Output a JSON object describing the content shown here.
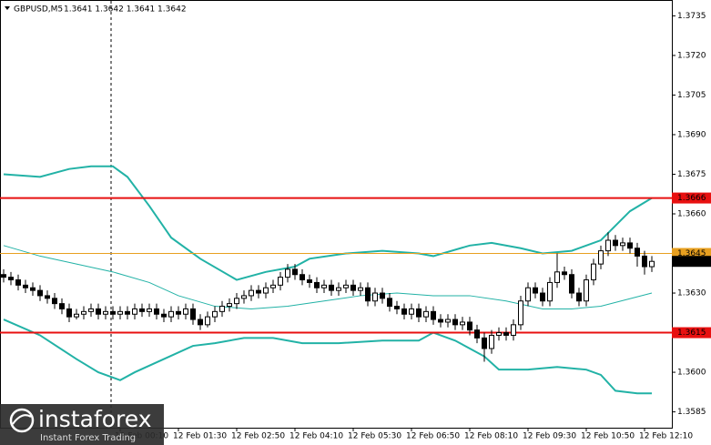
{
  "chart_data": {
    "type": "candlestick",
    "symbol": "GBPUSD,M5",
    "quote": "1.3641 1.3642 1.3641 1.3642",
    "ylim": [
      1.3579,
      1.3741
    ],
    "yticks": [
      1.3735,
      {
        "value": 1.372,
        "label": "1.3720"
      },
      1.3705,
      {
        "value": 1.369,
        "label": "1.3690"
      },
      1.3675,
      {
        "value": 1.366,
        "label": "1.3660"
      },
      {
        "value": 1.363,
        "label": "1.3630"
      },
      {
        "value": 1.36,
        "label": "1.3600"
      },
      1.3585
    ],
    "xticks": [
      {
        "value": 16,
        "label": "12 Feb 00:10"
      },
      {
        "value": 24,
        "label": "12 Feb 01:30"
      },
      {
        "value": 32,
        "label": "12 Feb 02:50"
      },
      {
        "value": 40,
        "label": "12 Feb 04:10"
      },
      {
        "value": 48,
        "label": "12 Feb 05:30"
      },
      {
        "value": 56,
        "label": "12 Feb 06:50"
      },
      {
        "value": 64,
        "label": "12 Feb 08:10"
      },
      {
        "value": 72,
        "label": "12 Feb 09:30"
      },
      {
        "value": 80,
        "label": "12 Feb 10:50"
      },
      {
        "value": 88,
        "label": "12 Feb 12:10"
      }
    ],
    "levels": [
      {
        "value": 1.3666,
        "color": "#e81010"
      },
      {
        "value": 1.3645,
        "color": "#e8a020"
      },
      {
        "value": 1.3615,
        "color": "#e81010"
      }
    ],
    "candles": [
      [
        1.3637,
        1.3639,
        1.3634,
        1.3636
      ],
      [
        1.3636,
        1.3638,
        1.3633,
        1.3635
      ],
      [
        1.3635,
        1.3637,
        1.3631,
        1.3633
      ],
      [
        1.3633,
        1.3635,
        1.363,
        1.3632
      ],
      [
        1.3632,
        1.3634,
        1.3629,
        1.3631
      ],
      [
        1.3631,
        1.3633,
        1.3627,
        1.3629
      ],
      [
        1.3629,
        1.3631,
        1.3626,
        1.3628
      ],
      [
        1.3628,
        1.363,
        1.3624,
        1.3626
      ],
      [
        1.3626,
        1.3628,
        1.3622,
        1.3624
      ],
      [
        1.3624,
        1.3626,
        1.3619,
        1.3621
      ],
      [
        1.3621,
        1.3624,
        1.362,
        1.3622
      ],
      [
        1.3622,
        1.3625,
        1.362,
        1.3623
      ],
      [
        1.3623,
        1.3626,
        1.3621,
        1.3624
      ],
      [
        1.3624,
        1.3626,
        1.362,
        1.3622
      ],
      [
        1.3622,
        1.3625,
        1.362,
        1.3623
      ],
      [
        1.3623,
        1.3625,
        1.362,
        1.3622
      ],
      [
        1.3622,
        1.3625,
        1.362,
        1.3623
      ],
      [
        1.3623,
        1.3625,
        1.362,
        1.3622
      ],
      [
        1.3622,
        1.3626,
        1.362,
        1.3624
      ],
      [
        1.3624,
        1.3626,
        1.3621,
        1.3623
      ],
      [
        1.3623,
        1.3626,
        1.3621,
        1.3624
      ],
      [
        1.3624,
        1.3626,
        1.362,
        1.3622
      ],
      [
        1.3622,
        1.3624,
        1.3619,
        1.3621
      ],
      [
        1.3621,
        1.3625,
        1.3619,
        1.3623
      ],
      [
        1.3623,
        1.3625,
        1.362,
        1.3622
      ],
      [
        1.3622,
        1.3626,
        1.362,
        1.3624
      ],
      [
        1.3624,
        1.3626,
        1.3618,
        1.362
      ],
      [
        1.362,
        1.3622,
        1.3616,
        1.3618
      ],
      [
        1.3618,
        1.3623,
        1.3617,
        1.3621
      ],
      [
        1.3621,
        1.3625,
        1.3619,
        1.3623
      ],
      [
        1.3623,
        1.3627,
        1.3621,
        1.3625
      ],
      [
        1.3625,
        1.3628,
        1.3623,
        1.3626
      ],
      [
        1.3626,
        1.363,
        1.3624,
        1.3628
      ],
      [
        1.3628,
        1.3631,
        1.3626,
        1.3629
      ],
      [
        1.3629,
        1.3633,
        1.3627,
        1.3631
      ],
      [
        1.3631,
        1.3633,
        1.3628,
        1.363
      ],
      [
        1.363,
        1.3634,
        1.3628,
        1.3632
      ],
      [
        1.3632,
        1.3635,
        1.363,
        1.3633
      ],
      [
        1.3633,
        1.3638,
        1.3631,
        1.3636
      ],
      [
        1.3636,
        1.3641,
        1.3634,
        1.3639
      ],
      [
        1.3639,
        1.3641,
        1.3635,
        1.3637
      ],
      [
        1.3637,
        1.3639,
        1.3633,
        1.3635
      ],
      [
        1.3635,
        1.3637,
        1.3632,
        1.3634
      ],
      [
        1.3634,
        1.3636,
        1.363,
        1.3632
      ],
      [
        1.3632,
        1.3635,
        1.363,
        1.3633
      ],
      [
        1.3633,
        1.3635,
        1.3629,
        1.3631
      ],
      [
        1.3631,
        1.3634,
        1.3629,
        1.3632
      ],
      [
        1.3632,
        1.3635,
        1.363,
        1.3633
      ],
      [
        1.3633,
        1.3635,
        1.3629,
        1.3631
      ],
      [
        1.3631,
        1.3634,
        1.3629,
        1.3632
      ],
      [
        1.3632,
        1.3634,
        1.3625,
        1.3627
      ],
      [
        1.3627,
        1.3632,
        1.3625,
        1.363
      ],
      [
        1.363,
        1.3632,
        1.3626,
        1.3628
      ],
      [
        1.3628,
        1.363,
        1.3623,
        1.3625
      ],
      [
        1.3625,
        1.3627,
        1.3622,
        1.3624
      ],
      [
        1.3624,
        1.3626,
        1.362,
        1.3622
      ],
      [
        1.3622,
        1.3626,
        1.362,
        1.3624
      ],
      [
        1.3624,
        1.3626,
        1.3619,
        1.3621
      ],
      [
        1.3621,
        1.3625,
        1.3619,
        1.3623
      ],
      [
        1.3623,
        1.3625,
        1.3618,
        1.362
      ],
      [
        1.362,
        1.3622,
        1.3617,
        1.3619
      ],
      [
        1.3619,
        1.3622,
        1.3617,
        1.362
      ],
      [
        1.362,
        1.3622,
        1.3616,
        1.3618
      ],
      [
        1.3618,
        1.3621,
        1.3616,
        1.3619
      ],
      [
        1.3619,
        1.3621,
        1.3614,
        1.3616
      ],
      [
        1.3616,
        1.3618,
        1.3611,
        1.3613
      ],
      [
        1.3613,
        1.3615,
        1.3604,
        1.3609
      ],
      [
        1.3609,
        1.3616,
        1.3607,
        1.3614
      ],
      [
        1.3614,
        1.3617,
        1.3612,
        1.3615
      ],
      [
        1.3615,
        1.3617,
        1.3612,
        1.3614
      ],
      [
        1.3614,
        1.362,
        1.3612,
        1.3618
      ],
      [
        1.3618,
        1.3629,
        1.3616,
        1.3627
      ],
      [
        1.3627,
        1.3634,
        1.3625,
        1.3632
      ],
      [
        1.3632,
        1.3634,
        1.3628,
        1.363
      ],
      [
        1.363,
        1.3632,
        1.3625,
        1.3627
      ],
      [
        1.3627,
        1.3636,
        1.3625,
        1.3634
      ],
      [
        1.3634,
        1.3645,
        1.3632,
        1.3638
      ],
      [
        1.3638,
        1.364,
        1.3635,
        1.3637
      ],
      [
        1.3637,
        1.3639,
        1.3628,
        1.363
      ],
      [
        1.363,
        1.3632,
        1.3625,
        1.3627
      ],
      [
        1.3627,
        1.3637,
        1.3625,
        1.3635
      ],
      [
        1.3635,
        1.3643,
        1.3633,
        1.3641
      ],
      [
        1.3641,
        1.3648,
        1.3639,
        1.3646
      ],
      [
        1.3646,
        1.3653,
        1.3644,
        1.365
      ],
      [
        1.365,
        1.3652,
        1.3646,
        1.3648
      ],
      [
        1.3648,
        1.3651,
        1.3646,
        1.3649
      ],
      [
        1.3649,
        1.3651,
        1.3645,
        1.3647
      ],
      [
        1.3647,
        1.3649,
        1.364,
        1.3644
      ],
      [
        1.3644,
        1.3646,
        1.3637,
        1.364
      ],
      [
        1.364,
        1.3644,
        1.3638,
        1.3642
      ]
    ],
    "bands": [
      {
        "color": "#22b2a6",
        "width": 2,
        "x": [
          0,
          5,
          9,
          12,
          15,
          17,
          20,
          23,
          27,
          32,
          36,
          40,
          42,
          47,
          52,
          57,
          59,
          64,
          67,
          71,
          74,
          78,
          82,
          86,
          89
        ],
        "values": [
          1.3675,
          1.3674,
          1.3677,
          1.3678,
          1.3678,
          1.3674,
          1.3663,
          1.3651,
          1.3643,
          1.3635,
          1.3638,
          1.364,
          1.3643,
          1.3645,
          1.3646,
          1.3645,
          1.3644,
          1.3648,
          1.3649,
          1.3647,
          1.3645,
          1.3646,
          1.365,
          1.3661,
          1.3666
        ]
      },
      {
        "color": "#22b2a6",
        "width": 1,
        "x": [
          0,
          5,
          10,
          15,
          20,
          24,
          29,
          34,
          39,
          44,
          49,
          54,
          59,
          64,
          69,
          74,
          78,
          82,
          89
        ],
        "values": [
          1.3648,
          1.3644,
          1.3641,
          1.3638,
          1.3634,
          1.3629,
          1.3625,
          1.3624,
          1.3625,
          1.3627,
          1.3629,
          1.363,
          1.3629,
          1.3629,
          1.3627,
          1.3624,
          1.3624,
          1.3625,
          1.363
        ]
      },
      {
        "color": "#22b2a6",
        "width": 2,
        "x": [
          0,
          5,
          10,
          13,
          16,
          18,
          22,
          26,
          29,
          33,
          37,
          41,
          46,
          52,
          57,
          59,
          62,
          66,
          68,
          72,
          76,
          80,
          82,
          84,
          87,
          89
        ],
        "values": [
          1.362,
          1.3614,
          1.3605,
          1.36,
          1.3597,
          1.36,
          1.3605,
          1.361,
          1.3611,
          1.3613,
          1.3613,
          1.3611,
          1.3611,
          1.3612,
          1.3612,
          1.3615,
          1.3612,
          1.3606,
          1.3601,
          1.3601,
          1.3602,
          1.3601,
          1.3599,
          1.3593,
          1.3592,
          1.3592
        ]
      }
    ],
    "brand": "instaforex",
    "tagline": "Instant Forex Trading"
  }
}
